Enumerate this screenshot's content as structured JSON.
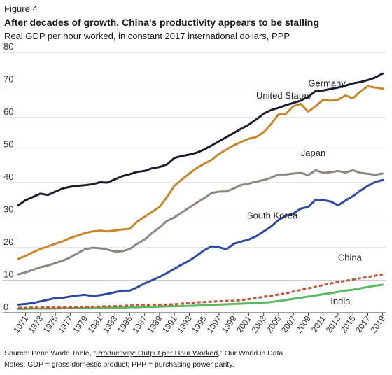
{
  "figure_label": "Figure 4",
  "title": "After decades of growth, China’s productivity appears to be stalling",
  "subtitle": "Real GDP per hour worked, in constant 2017 international dollars, PPP",
  "source": {
    "prefix": "Source: Penn World Table, “",
    "link_text": "Productivity: Output per Hour Worked",
    "suffix": ",” Our World in Data."
  },
  "notes": "Notes: GDP = gross domestic product; PPP = purchasing power parity.",
  "chart_data": {
    "type": "line",
    "ylim": [
      0,
      80
    ],
    "yticks": [
      0,
      10,
      20,
      30,
      40,
      50,
      60,
      70,
      80
    ],
    "xlim": [
      1970,
      2019.5
    ],
    "xticks": [
      1971,
      1973,
      1975,
      1977,
      1979,
      1981,
      1983,
      1985,
      1987,
      1989,
      1991,
      1993,
      1995,
      1997,
      1999,
      2001,
      2003,
      2005,
      2007,
      2009,
      2011,
      2013,
      2015,
      2017,
      2019
    ],
    "grid": true,
    "x": [
      1970,
      1971,
      1972,
      1973,
      1974,
      1975,
      1976,
      1977,
      1978,
      1979,
      1980,
      1981,
      1982,
      1983,
      1984,
      1985,
      1986,
      1987,
      1988,
      1989,
      1990,
      1991,
      1992,
      1993,
      1994,
      1995,
      1996,
      1997,
      1998,
      1999,
      2000,
      2001,
      2002,
      2003,
      2004,
      2005,
      2006,
      2007,
      2008,
      2009,
      2010,
      2011,
      2012,
      2013,
      2014,
      2015,
      2016,
      2017,
      2018,
      2019
    ],
    "series": [
      {
        "name": "United States",
        "color": "#1f1b2d",
        "dash": false,
        "values": [
          33.0,
          34.6,
          35.6,
          36.6,
          36.2,
          37.2,
          38.2,
          38.7,
          39.0,
          39.2,
          39.5,
          40.1,
          40.0,
          41.0,
          42.0,
          42.6,
          43.3,
          43.6,
          44.4,
          44.8,
          45.6,
          47.6,
          48.2,
          48.6,
          49.2,
          50.2,
          51.4,
          52.7,
          54.0,
          55.3,
          56.6,
          57.8,
          59.4,
          61.2,
          62.3,
          63.0,
          63.8,
          64.5,
          65.2,
          66.4,
          68.2,
          68.3,
          68.8,
          69.2,
          69.8,
          70.5,
          70.9,
          71.5,
          72.3,
          73.5
        ]
      },
      {
        "name": "Germany",
        "color": "#c8862a",
        "dash": false,
        "values": [
          16.5,
          17.5,
          18.6,
          19.6,
          20.4,
          21.2,
          22.0,
          23.0,
          23.7,
          24.5,
          25.0,
          25.2,
          25.0,
          25.3,
          25.6,
          25.8,
          28.0,
          29.5,
          31.0,
          32.5,
          35.5,
          39.0,
          41.0,
          42.8,
          44.5,
          45.8,
          47.0,
          48.8,
          50.2,
          51.5,
          52.5,
          53.5,
          54.0,
          55.5,
          58.0,
          61.0,
          61.2,
          63.5,
          64.2,
          61.8,
          63.5,
          65.5,
          65.2,
          65.5,
          66.8,
          65.9,
          68.0,
          69.6,
          69.2,
          68.9
        ]
      },
      {
        "name": "Japan",
        "color": "#8c8780",
        "dash": false,
        "values": [
          11.8,
          12.4,
          13.2,
          14.0,
          14.5,
          15.3,
          16.0,
          17.0,
          18.3,
          19.5,
          20.0,
          19.8,
          19.4,
          18.8,
          18.9,
          19.6,
          21.2,
          22.5,
          24.5,
          26.2,
          28.2,
          29.3,
          30.8,
          32.3,
          33.8,
          35.2,
          36.8,
          37.2,
          37.3,
          38.2,
          39.3,
          39.7,
          40.3,
          40.8,
          41.5,
          42.5,
          42.5,
          42.8,
          43.0,
          42.3,
          43.8,
          43.0,
          43.2,
          43.6,
          43.1,
          43.8,
          43.0,
          42.7,
          42.4,
          42.8
        ]
      },
      {
        "name": "South Korea",
        "color": "#2e4aa3",
        "dash": false,
        "values": [
          2.5,
          2.7,
          3.0,
          3.5,
          4.0,
          4.5,
          4.6,
          5.0,
          5.3,
          5.5,
          5.1,
          5.4,
          5.8,
          6.3,
          6.8,
          6.8,
          7.8,
          9.0,
          10.0,
          11.0,
          12.2,
          13.5,
          14.8,
          16.0,
          17.5,
          19.2,
          20.4,
          20.1,
          19.5,
          21.2,
          21.9,
          22.5,
          23.5,
          25.0,
          26.5,
          28.5,
          29.8,
          30.5,
          32.0,
          32.5,
          34.8,
          34.6,
          34.2,
          33.0,
          34.5,
          35.8,
          37.5,
          39.0,
          40.2,
          40.8
        ]
      },
      {
        "name": "China",
        "color": "#c0533a",
        "dash": true,
        "values": [
          1.5,
          1.5,
          1.6,
          1.6,
          1.6,
          1.6,
          1.6,
          1.7,
          1.7,
          1.8,
          1.8,
          1.9,
          2.0,
          2.0,
          2.1,
          2.2,
          2.3,
          2.4,
          2.5,
          2.5,
          2.5,
          2.6,
          2.8,
          3.0,
          3.2,
          3.3,
          3.4,
          3.5,
          3.6,
          3.7,
          3.9,
          4.2,
          4.5,
          4.9,
          5.2,
          5.6,
          6.0,
          6.5,
          7.0,
          7.5,
          8.0,
          8.5,
          9.0,
          9.4,
          9.8,
          10.2,
          10.6,
          11.0,
          11.4,
          11.7
        ]
      },
      {
        "name": "India",
        "color": "#5cb861",
        "dash": false,
        "values": [
          1.2,
          1.2,
          1.3,
          1.3,
          1.3,
          1.3,
          1.4,
          1.4,
          1.4,
          1.4,
          1.5,
          1.5,
          1.5,
          1.6,
          1.6,
          1.7,
          1.7,
          1.8,
          1.8,
          1.9,
          2.0,
          2.0,
          2.1,
          2.1,
          2.2,
          2.3,
          2.4,
          2.5,
          2.6,
          2.7,
          2.8,
          2.9,
          3.0,
          3.1,
          3.3,
          3.6,
          3.9,
          4.3,
          4.6,
          5.0,
          5.3,
          5.7,
          6.0,
          6.4,
          6.8,
          7.1,
          7.5,
          7.9,
          8.3,
          8.6
        ]
      }
    ],
    "labels": [
      {
        "text": "United States",
        "series": 0
      },
      {
        "text": "Germany",
        "series": 1
      },
      {
        "text": "Japan",
        "series": 2
      },
      {
        "text": "South Korea",
        "series": 3
      },
      {
        "text": "China",
        "series": 4
      },
      {
        "text": "India",
        "series": 5
      }
    ]
  }
}
